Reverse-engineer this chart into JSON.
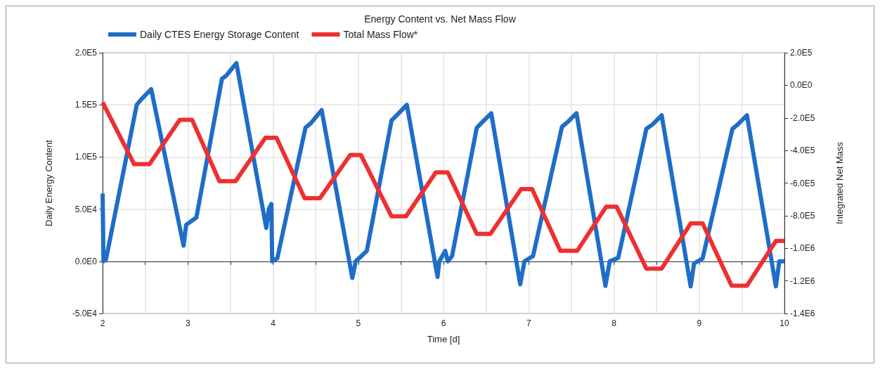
{
  "chart_data": {
    "type": "line",
    "title": "Energy Content vs. Net Mass Flow",
    "xlabel": "Time [d]",
    "ylabel": "Daily Energy Content",
    "y2label": "Integrated Net Mass",
    "legend": "top left",
    "grid": true,
    "marker": "none",
    "line_style": "solid",
    "xlim": [
      2,
      10
    ],
    "xticks": [
      2,
      {
        "value": 2.5,
        "label": null
      },
      3,
      {
        "value": 3.5,
        "label": null
      },
      4,
      {
        "value": 4.5,
        "label": null
      },
      5,
      {
        "value": 5.5,
        "label": null
      },
      6,
      {
        "value": 6.5,
        "label": null
      },
      7,
      {
        "value": 7.5,
        "label": null
      },
      8,
      {
        "value": 8.5,
        "label": null
      },
      9,
      {
        "value": 9.5,
        "label": null
      },
      10
    ],
    "ylim": [
      -50000,
      200000
    ],
    "yticks": [
      {
        "value": -50000,
        "label": "-5.0E4"
      },
      {
        "value": 0,
        "label": "0.0E0"
      },
      {
        "value": 50000,
        "label": "5.0E4"
      },
      {
        "value": 100000,
        "label": "1.0E5"
      },
      {
        "value": 150000,
        "label": "1.5E5"
      },
      {
        "value": 200000,
        "label": "2.0E5"
      }
    ],
    "y2lim": [
      -1400000,
      200000
    ],
    "y2ticks": [
      {
        "value": -1400000,
        "label": "-1.4E6"
      },
      {
        "value": -1200000,
        "label": "-1.2E6"
      },
      {
        "value": -1000000,
        "label": "-1.0E6"
      },
      {
        "value": -800000,
        "label": "-8.0E5"
      },
      {
        "value": -600000,
        "label": "-6.0E5"
      },
      {
        "value": -400000,
        "label": "-4.0E5"
      },
      {
        "value": -200000,
        "label": "-2.0E5"
      },
      {
        "value": 0,
        "label": "0.0E0"
      },
      {
        "value": 200000,
        "label": "2.0E5"
      }
    ],
    "series": [
      {
        "name": "Daily CTES Energy Storage Content",
        "color": "#1f6dc9",
        "x": [
          2,
          2.01,
          2.04,
          2.4,
          2.45,
          2.57,
          2.95,
          2.98,
          3.1,
          3.4,
          3.45,
          3.57,
          3.92,
          3.95,
          3.98,
          3.99,
          4.05,
          4.38,
          4.45,
          4.57,
          4.93,
          4.97,
          5.1,
          5.39,
          5.45,
          5.57,
          5.93,
          5.95,
          6.02,
          6.05,
          6.1,
          6.39,
          6.45,
          6.56,
          6.9,
          6.95,
          7.05,
          7.39,
          7.45,
          7.56,
          7.9,
          7.95,
          8.05,
          8.38,
          8.45,
          8.56,
          8.9,
          8.94,
          9.04,
          9.39,
          9.45,
          9.56,
          9.9,
          9.94,
          10
        ],
        "values": [
          65000,
          0,
          2000,
          150000,
          155000,
          165000,
          15000,
          35000,
          42000,
          175000,
          178000,
          190000,
          32000,
          50000,
          55000,
          0,
          3000,
          128000,
          133000,
          145000,
          -16000,
          0,
          10000,
          135000,
          140000,
          150000,
          -15000,
          0,
          10000,
          0,
          5000,
          128000,
          133000,
          142000,
          -22000,
          0,
          5000,
          129000,
          133000,
          142000,
          -23500,
          0,
          3300,
          127000,
          131000,
          140000,
          -24000,
          -2000,
          2700,
          127000,
          131000,
          140000,
          -24000,
          0,
          0
        ]
      },
      {
        "name": "Total Mass Flow*",
        "color": "#ee3030",
        "axis": "y2",
        "x": [
          2,
          2.37,
          2.55,
          2.905,
          3.05,
          3.37,
          3.56,
          3.91,
          4.04,
          4.37,
          4.55,
          4.905,
          5.03,
          5.39,
          5.56,
          5.91,
          6.05,
          6.39,
          6.55,
          6.91,
          7.04,
          7.37,
          7.57,
          7.91,
          8.03,
          8.38,
          8.56,
          8.9,
          9.04,
          9.38,
          9.56,
          9.9,
          10
        ],
        "values": [
          -105000,
          -484000,
          -484000,
          -212000,
          -212000,
          -588000,
          -588000,
          -322000,
          -322000,
          -693000,
          -693000,
          -427000,
          -427000,
          -804000,
          -804000,
          -534000,
          -534000,
          -912000,
          -912000,
          -637000,
          -637000,
          -1015000,
          -1015000,
          -744000,
          -744000,
          -1125000,
          -1125000,
          -847000,
          -847000,
          -1230000,
          -1230000,
          -955000,
          -955000
        ]
      }
    ]
  }
}
